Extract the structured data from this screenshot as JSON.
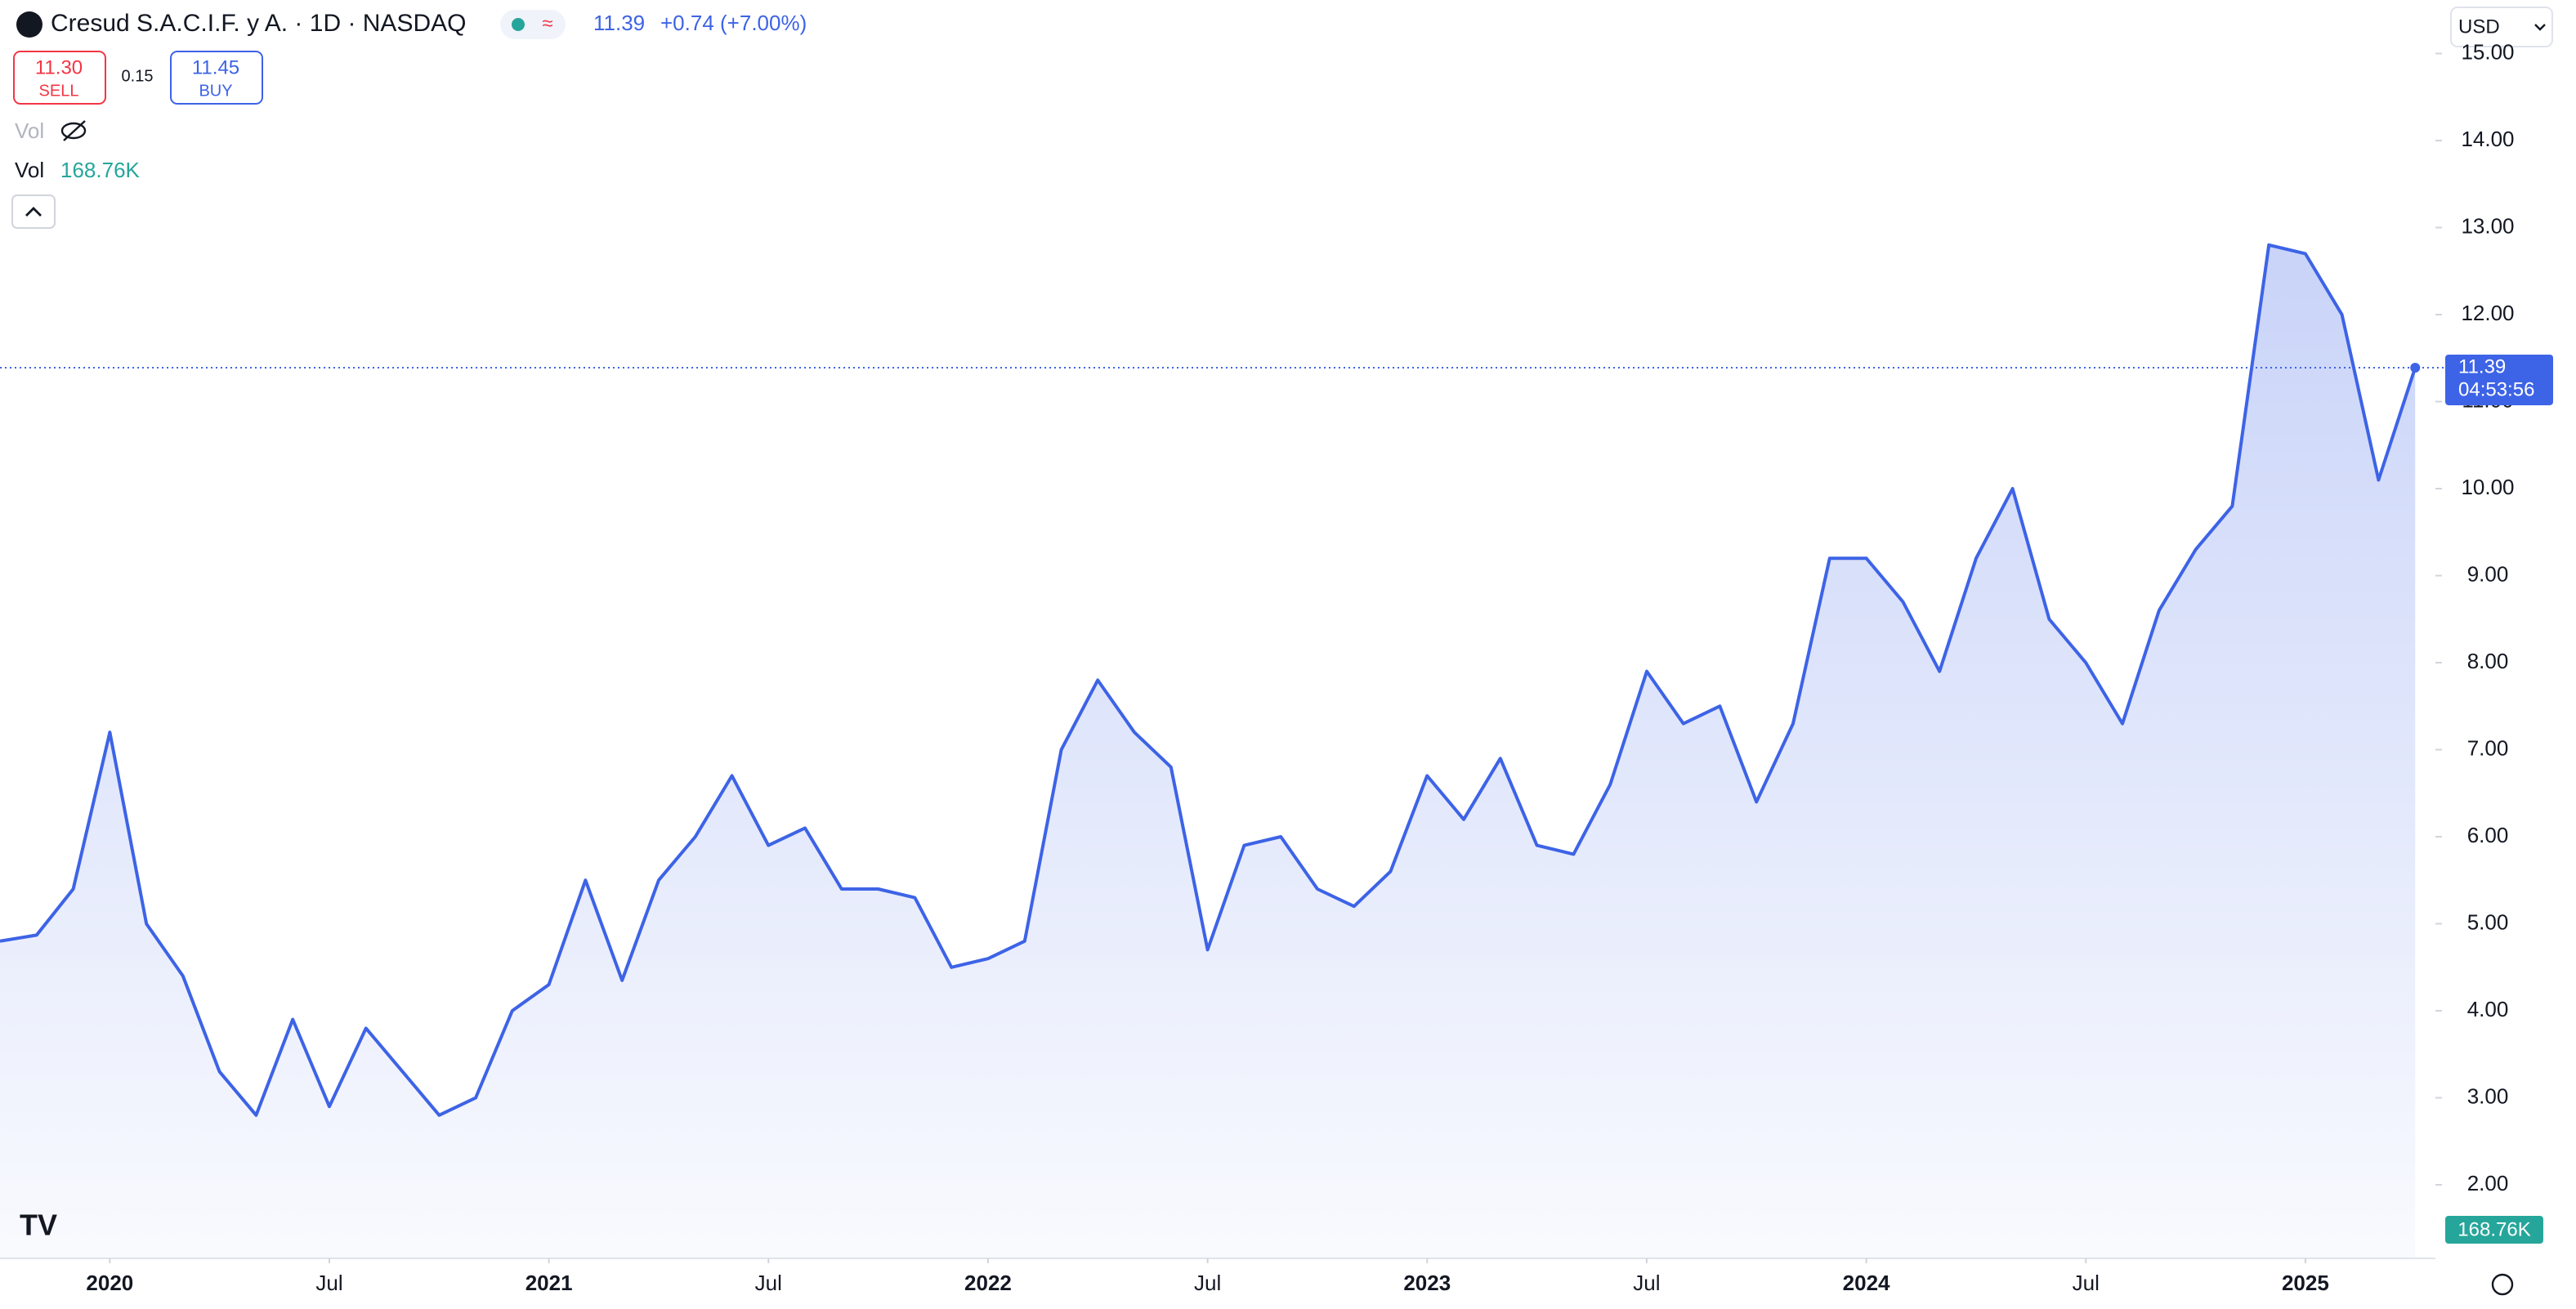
{
  "header": {
    "symbol": "Cresud S.A.C.I.F. y A. · 1D · NASDAQ",
    "price": "11.39",
    "change": "+0.74 (+7.00%)",
    "sell_price": "11.30",
    "sell": "SELL",
    "spread": "0.15",
    "buy_price": "11.45",
    "buy": "BUY",
    "vol_toggle": "Vol",
    "vol_label": "Vol",
    "vol_value": "168.76K",
    "currency": "USD",
    "countdown": "04:53:56"
  },
  "chart_data": {
    "type": "area",
    "color": "#3d63e6",
    "grid": false,
    "x": [
      "2019-10",
      "2019-11",
      "2019-12",
      "2020-01",
      "2020-02",
      "2020-03",
      "2020-04",
      "2020-05",
      "2020-06",
      "2020-07",
      "2020-08",
      "2020-09",
      "2020-10",
      "2020-11",
      "2020-12",
      "2021-01",
      "2021-02",
      "2021-03",
      "2021-04",
      "2021-05",
      "2021-06",
      "2021-07",
      "2021-08",
      "2021-09",
      "2021-10",
      "2021-11",
      "2021-12",
      "2022-01",
      "2022-02",
      "2022-03",
      "2022-04",
      "2022-05",
      "2022-06",
      "2022-07",
      "2022-08",
      "2022-09",
      "2022-10",
      "2022-11",
      "2022-12",
      "2023-01",
      "2023-02",
      "2023-03",
      "2023-04",
      "2023-05",
      "2023-06",
      "2023-07",
      "2023-08",
      "2023-09",
      "2023-10",
      "2023-11",
      "2023-12",
      "2024-01",
      "2024-02",
      "2024-03",
      "2024-04",
      "2024-05",
      "2024-06",
      "2024-07",
      "2024-08",
      "2024-09",
      "2024-10",
      "2024-11",
      "2024-12",
      "2025-01",
      "2025-02",
      "2025-03",
      "2025-04"
    ],
    "values": [
      4.8,
      4.87,
      5.4,
      7.2,
      5.0,
      4.4,
      3.3,
      2.8,
      3.9,
      2.9,
      3.8,
      3.3,
      2.8,
      3.0,
      4.0,
      4.3,
      5.5,
      4.35,
      5.5,
      6.0,
      6.7,
      5.9,
      6.1,
      5.4,
      5.4,
      5.3,
      4.5,
      4.6,
      4.8,
      7.0,
      7.8,
      7.2,
      6.8,
      4.7,
      5.9,
      6.0,
      5.4,
      5.2,
      5.6,
      6.7,
      6.2,
      6.9,
      5.9,
      5.8,
      6.6,
      7.9,
      7.3,
      7.5,
      6.4,
      7.3,
      9.2,
      9.2,
      8.7,
      7.9,
      9.2,
      10.0,
      8.5,
      8.0,
      7.3,
      8.6,
      9.3,
      9.8,
      12.8,
      12.7,
      12.0,
      10.1,
      11.39
    ],
    "xlim": [
      "2019-10",
      "2025-05"
    ],
    "xticks": [
      {
        "value": "2020-01",
        "label": "2020"
      },
      {
        "value": "2020-07",
        "label": "Jul"
      },
      {
        "value": "2021-01",
        "label": "2021"
      },
      {
        "value": "2021-07",
        "label": "Jul"
      },
      {
        "value": "2022-01",
        "label": "2022"
      },
      {
        "value": "2022-07",
        "label": "Jul"
      },
      {
        "value": "2023-01",
        "label": "2023"
      },
      {
        "value": "2023-07",
        "label": "Jul"
      },
      {
        "value": "2024-01",
        "label": "2024"
      },
      {
        "value": "2024-07",
        "label": "Jul"
      },
      {
        "value": "2025-01",
        "label": "2025"
      }
    ],
    "ylim": [
      1.155,
      15.615
    ],
    "yticks": [
      {
        "value": 2,
        "label": "2.00"
      },
      {
        "value": 3,
        "label": "3.00"
      },
      {
        "value": 4,
        "label": "4.00"
      },
      {
        "value": 5,
        "label": "5.00"
      },
      {
        "value": 6,
        "label": "6.00"
      },
      {
        "value": 7,
        "label": "7.00"
      },
      {
        "value": 8,
        "label": "8.00"
      },
      {
        "value": 9,
        "label": "9.00"
      },
      {
        "value": 10,
        "label": "10.00"
      },
      {
        "value": 11,
        "label": "11.00"
      },
      {
        "value": 12,
        "label": "12.00"
      },
      {
        "value": 13,
        "label": "13.00"
      },
      {
        "value": 14,
        "label": "14.00"
      },
      {
        "value": 15,
        "label": "15.00"
      }
    ]
  }
}
